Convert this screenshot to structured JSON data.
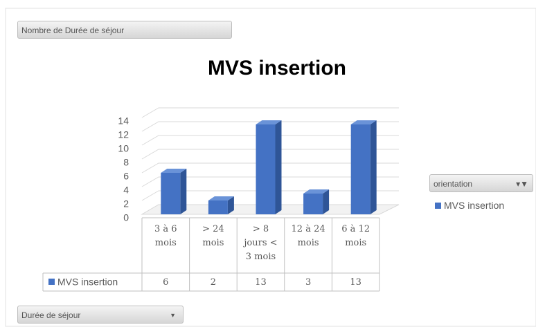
{
  "chart_data": {
    "type": "bar3d",
    "title": "MVS insertion",
    "value_field": "Nombre de Durée de séjour",
    "legend_field": "orientation",
    "axis_field": "Durée de séjour",
    "categories": [
      "3 à 6 mois",
      "> 24 mois",
      "> 8 jours < 3 mois",
      "12 à 24 mois",
      "6 à 12 mois"
    ],
    "series": [
      {
        "name": "MVS insertion",
        "color": "#4472c4",
        "values": [
          6,
          2,
          13,
          3,
          13
        ]
      }
    ],
    "ylim": [
      0,
      14
    ],
    "yticks": [
      0,
      2,
      4,
      6,
      8,
      10,
      12,
      14
    ],
    "grid": true,
    "legend": "right",
    "data_table": true
  }
}
